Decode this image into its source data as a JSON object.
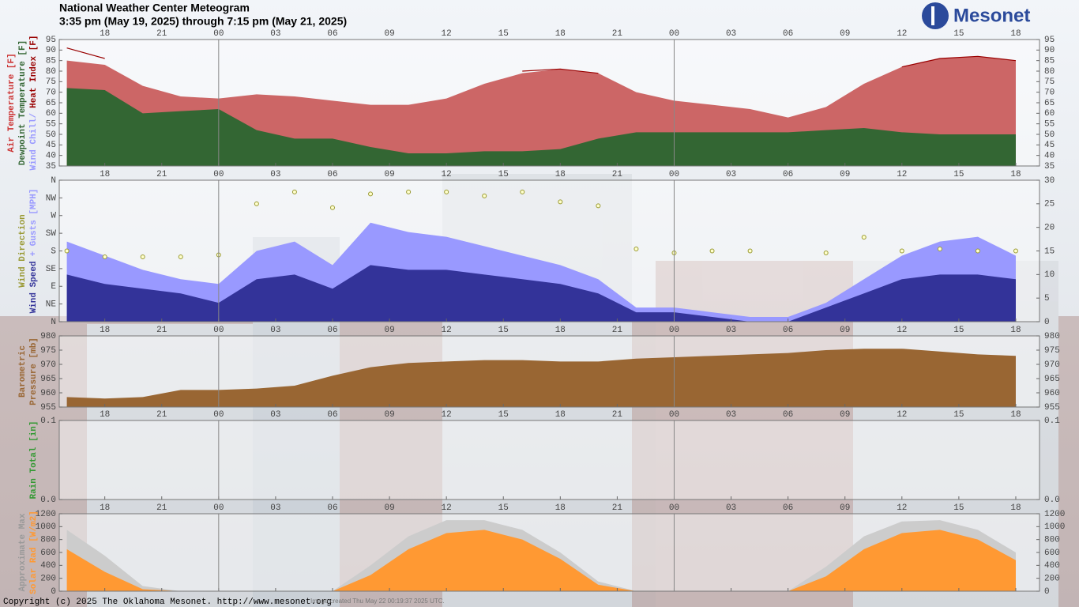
{
  "title": "National Weather Center Meteogram",
  "subtitle": "3:35 pm (May 19, 2025) through 7:15 pm (May 21, 2025)",
  "logo": "Mesonet",
  "footer": {
    "copyright": "Copyright (c) 2025 The Oklahoma Mesonet. http://www.mesonet.org",
    "created": "Image created Thu May 22 00:19:37 2025 UTC."
  },
  "chart_data": [
    {
      "type": "area",
      "ylabel": [
        [
          {
            "text": "Air Temperature [F]",
            "color": "#cc3333"
          }
        ],
        [
          {
            "text": "Dewpoint Temperature [F]",
            "color": "#336633"
          }
        ],
        [
          {
            "text": "Wind Chill/",
            "color": "#9999ff"
          },
          {
            "text": "Heat Index [F]",
            "color": "#990000"
          }
        ]
      ],
      "x": [
        16,
        18,
        20,
        22,
        24,
        26,
        28,
        30,
        32,
        34,
        36,
        38,
        40,
        42,
        44,
        46,
        48,
        50,
        52,
        54,
        56,
        58,
        60,
        62,
        64,
        66
      ],
      "xlim": [
        15.6,
        67.25
      ],
      "xticks": [
        18,
        21,
        {
          "value": 24,
          "label": "00"
        },
        {
          "value": 27,
          "label": "03"
        },
        {
          "value": 30,
          "label": "06"
        },
        {
          "value": 33,
          "label": "09"
        },
        {
          "value": 36,
          "label": "12"
        },
        {
          "value": 39,
          "label": "15"
        },
        {
          "value": 42,
          "label": "18"
        },
        {
          "value": 45,
          "label": "21"
        },
        {
          "value": 48,
          "label": "00"
        },
        {
          "value": 51,
          "label": "03"
        },
        {
          "value": 54,
          "label": "06"
        },
        {
          "value": 57,
          "label": "09"
        },
        {
          "value": 60,
          "label": "12"
        },
        {
          "value": 63,
          "label": "15"
        },
        {
          "value": 66,
          "label": "18"
        }
      ],
      "midnight_lines": [
        24,
        48
      ],
      "ylim": [
        35,
        95
      ],
      "yticks": [
        35,
        40,
        45,
        50,
        55,
        60,
        65,
        70,
        75,
        80,
        85,
        90,
        95
      ],
      "series": [
        {
          "name": "Air Temperature",
          "type": "area",
          "color": "#cc6666",
          "values": [
            85,
            83,
            73,
            68,
            67,
            69,
            68,
            66,
            64,
            64,
            67,
            74,
            79,
            81,
            79,
            70,
            66,
            64,
            62,
            58,
            63,
            74,
            82,
            86,
            87,
            85
          ]
        },
        {
          "name": "Dewpoint Temperature",
          "type": "area",
          "color": "#336633",
          "values": [
            72,
            71,
            60,
            61,
            62,
            52,
            48,
            48,
            44,
            41,
            41,
            42,
            42,
            43,
            48,
            51,
            51,
            51,
            51,
            51,
            52,
            53,
            51,
            50,
            50,
            50
          ]
        },
        {
          "name": "Heat Index",
          "type": "line",
          "color": "#990000",
          "values": [
            91,
            86,
            null,
            null,
            null,
            null,
            null,
            null,
            null,
            null,
            null,
            null,
            80,
            81,
            79,
            null,
            null,
            null,
            null,
            null,
            null,
            null,
            82,
            86,
            87,
            85
          ]
        }
      ]
    },
    {
      "type": "combo",
      "ylabel": [
        [
          {
            "text": "Wind Direction",
            "color": "#999933"
          }
        ],
        [
          {
            "text": "Wind Speed",
            "color": "#333399"
          },
          {
            "text": "+ Gusts [MPH]",
            "color": "#9999ff"
          }
        ]
      ],
      "x": [
        16,
        18,
        20,
        22,
        24,
        26,
        28,
        30,
        32,
        34,
        36,
        38,
        40,
        42,
        44,
        46,
        48,
        50,
        52,
        54,
        56,
        58,
        60,
        62,
        64,
        66
      ],
      "xlim": [
        15.6,
        67.25
      ],
      "xticks": [
        18,
        21,
        {
          "value": 24,
          "label": "00"
        },
        {
          "value": 27,
          "label": "03"
        },
        {
          "value": 30,
          "label": "06"
        },
        {
          "value": 33,
          "label": "09"
        },
        {
          "value": 36,
          "label": "12"
        },
        {
          "value": 39,
          "label": "15"
        },
        {
          "value": 42,
          "label": "18"
        },
        {
          "value": 45,
          "label": "21"
        },
        {
          "value": 48,
          "label": "00"
        },
        {
          "value": 51,
          "label": "03"
        },
        {
          "value": 54,
          "label": "06"
        },
        {
          "value": 57,
          "label": "09"
        },
        {
          "value": 60,
          "label": "12"
        },
        {
          "value": 63,
          "label": "15"
        },
        {
          "value": 66,
          "label": "18"
        }
      ],
      "midnight_lines": [
        24,
        48
      ],
      "ylim": [
        0,
        360
      ],
      "yticks": [
        {
          "value": 0,
          "label": "N"
        },
        {
          "value": 45,
          "label": "NE"
        },
        {
          "value": 90,
          "label": "E"
        },
        {
          "value": 135,
          "label": "SE"
        },
        {
          "value": 180,
          "label": "S"
        },
        {
          "value": 225,
          "label": "SW"
        },
        {
          "value": 270,
          "label": "W"
        },
        {
          "value": 315,
          "label": "NW"
        },
        {
          "value": 360,
          "label": "N"
        }
      ],
      "y2lim": [
        0,
        30
      ],
      "y2ticks": [
        0,
        5,
        10,
        15,
        20,
        25,
        30
      ],
      "series": [
        {
          "name": "Gusts",
          "type": "area",
          "axis": "y2",
          "color": "#9999ff",
          "values": [
            17,
            14,
            11,
            9,
            8,
            15,
            17,
            12,
            21,
            19,
            18,
            16,
            14,
            12,
            9,
            3,
            3,
            2,
            1,
            1,
            4,
            9,
            14,
            17,
            18,
            14
          ]
        },
        {
          "name": "Wind Speed",
          "type": "area",
          "axis": "y2",
          "color": "#333399",
          "values": [
            10,
            8,
            7,
            6,
            4,
            9,
            10,
            7,
            12,
            11,
            11,
            10,
            9,
            8,
            6,
            2,
            2,
            1,
            0,
            0,
            3,
            6,
            9,
            10,
            10,
            9
          ]
        },
        {
          "name": "Wind Direction",
          "type": "scatter",
          "color": "#999933",
          "values": [
            180,
            165,
            165,
            165,
            170,
            300,
            330,
            290,
            325,
            330,
            330,
            320,
            330,
            305,
            295,
            185,
            175,
            180,
            180,
            null,
            175,
            215,
            180,
            185,
            180,
            180
          ]
        }
      ]
    },
    {
      "type": "area",
      "ylabel": [
        [
          {
            "text": "Barometric",
            "color": "#996633"
          }
        ],
        [
          {
            "text": "Pressure [mb]",
            "color": "#996633"
          }
        ]
      ],
      "x": [
        16,
        18,
        20,
        22,
        24,
        26,
        28,
        30,
        32,
        34,
        36,
        38,
        40,
        42,
        44,
        46,
        48,
        50,
        52,
        54,
        56,
        58,
        60,
        62,
        64,
        66
      ],
      "xlim": [
        15.6,
        67.25
      ],
      "xticks": [
        18,
        21,
        {
          "value": 24,
          "label": "00"
        },
        {
          "value": 27,
          "label": "03"
        },
        {
          "value": 30,
          "label": "06"
        },
        {
          "value": 33,
          "label": "09"
        },
        {
          "value": 36,
          "label": "12"
        },
        {
          "value": 39,
          "label": "15"
        },
        {
          "value": 42,
          "label": "18"
        },
        {
          "value": 45,
          "label": "21"
        },
        {
          "value": 48,
          "label": "00"
        },
        {
          "value": 51,
          "label": "03"
        },
        {
          "value": 54,
          "label": "06"
        },
        {
          "value": 57,
          "label": "09"
        },
        {
          "value": 60,
          "label": "12"
        },
        {
          "value": 63,
          "label": "15"
        },
        {
          "value": 66,
          "label": "18"
        }
      ],
      "midnight_lines": [
        24,
        48
      ],
      "ylim": [
        955,
        980
      ],
      "yticks": [
        955,
        960,
        965,
        970,
        975,
        980
      ],
      "series": [
        {
          "name": "Barometric Pressure",
          "type": "area",
          "color": "#996633",
          "values": [
            958.5,
            958,
            958.5,
            961,
            961,
            961.5,
            962.5,
            966,
            969,
            970.5,
            971,
            971.5,
            971.5,
            971,
            971,
            972,
            972.5,
            973,
            973.5,
            974,
            975,
            975.5,
            975.5,
            974.5,
            973.5,
            973
          ]
        }
      ]
    },
    {
      "type": "area",
      "ylabel": [
        [
          {
            "text": "Rain Total [in]",
            "color": "#339933"
          }
        ]
      ],
      "x": [
        16,
        18,
        20,
        22,
        24,
        26,
        28,
        30,
        32,
        34,
        36,
        38,
        40,
        42,
        44,
        46,
        48,
        50,
        52,
        54,
        56,
        58,
        60,
        62,
        64,
        66
      ],
      "xlim": [
        15.6,
        67.25
      ],
      "xticks": [
        18,
        21,
        {
          "value": 24,
          "label": "00"
        },
        {
          "value": 27,
          "label": "03"
        },
        {
          "value": 30,
          "label": "06"
        },
        {
          "value": 33,
          "label": "09"
        },
        {
          "value": 36,
          "label": "12"
        },
        {
          "value": 39,
          "label": "15"
        },
        {
          "value": 42,
          "label": "18"
        },
        {
          "value": 45,
          "label": "21"
        },
        {
          "value": 48,
          "label": "00"
        },
        {
          "value": 51,
          "label": "03"
        },
        {
          "value": 54,
          "label": "06"
        },
        {
          "value": 57,
          "label": "09"
        },
        {
          "value": 60,
          "label": "12"
        },
        {
          "value": 63,
          "label": "15"
        },
        {
          "value": 66,
          "label": "18"
        }
      ],
      "midnight_lines": [
        24,
        48
      ],
      "ylim": [
        0,
        0.1
      ],
      "yticks": [
        {
          "value": 0,
          "label": "0.0"
        },
        0.1
      ],
      "series": [
        {
          "name": "Rain Total",
          "type": "area",
          "color": "#339933",
          "values": [
            0,
            0,
            0,
            0,
            0,
            0,
            0,
            0,
            0,
            0,
            0,
            0,
            0,
            0,
            0,
            0,
            0,
            0,
            0,
            0,
            0,
            0,
            0,
            0,
            0,
            0
          ]
        }
      ]
    },
    {
      "type": "area",
      "ylabel": [
        [
          {
            "text": "Approximate Max",
            "color": "#999999"
          }
        ],
        [
          {
            "text": "Solar Rad [W/m2]",
            "color": "#ff9933"
          }
        ]
      ],
      "x": [
        16,
        18,
        20,
        22,
        24,
        26,
        28,
        30,
        32,
        34,
        36,
        38,
        40,
        42,
        44,
        46,
        48,
        50,
        52,
        54,
        56,
        58,
        60,
        62,
        64,
        66
      ],
      "xlim": [
        15.6,
        67.25
      ],
      "xticks": [
        18,
        21,
        {
          "value": 24,
          "label": "00"
        },
        {
          "value": 27,
          "label": "03"
        },
        {
          "value": 30,
          "label": "06"
        },
        {
          "value": 33,
          "label": "09"
        },
        {
          "value": 36,
          "label": "12"
        },
        {
          "value": 39,
          "label": "15"
        },
        {
          "value": 42,
          "label": "18"
        },
        {
          "value": 45,
          "label": "21"
        },
        {
          "value": 48,
          "label": "00"
        },
        {
          "value": 51,
          "label": "03"
        },
        {
          "value": 54,
          "label": "06"
        },
        {
          "value": 57,
          "label": "09"
        },
        {
          "value": 60,
          "label": "12"
        },
        {
          "value": 63,
          "label": "15"
        },
        {
          "value": 66,
          "label": "18"
        }
      ],
      "midnight_lines": [
        24,
        48
      ],
      "ylim": [
        0,
        1200
      ],
      "yticks": [
        0,
        200,
        400,
        600,
        800,
        1000,
        1200
      ],
      "series": [
        {
          "name": "Approximate Max",
          "type": "area",
          "color": "#cccccc",
          "values": [
            950,
            550,
            80,
            0,
            0,
            0,
            0,
            0,
            400,
            850,
            1100,
            1100,
            950,
            600,
            150,
            0,
            0,
            0,
            0,
            0,
            380,
            850,
            1080,
            1100,
            950,
            600
          ]
        },
        {
          "name": "Solar Radiation",
          "type": "area",
          "color": "#ff9933",
          "values": [
            650,
            300,
            30,
            0,
            0,
            0,
            0,
            0,
            250,
            650,
            900,
            950,
            800,
            500,
            100,
            0,
            0,
            0,
            0,
            0,
            230,
            650,
            900,
            950,
            800,
            480
          ]
        }
      ]
    }
  ]
}
